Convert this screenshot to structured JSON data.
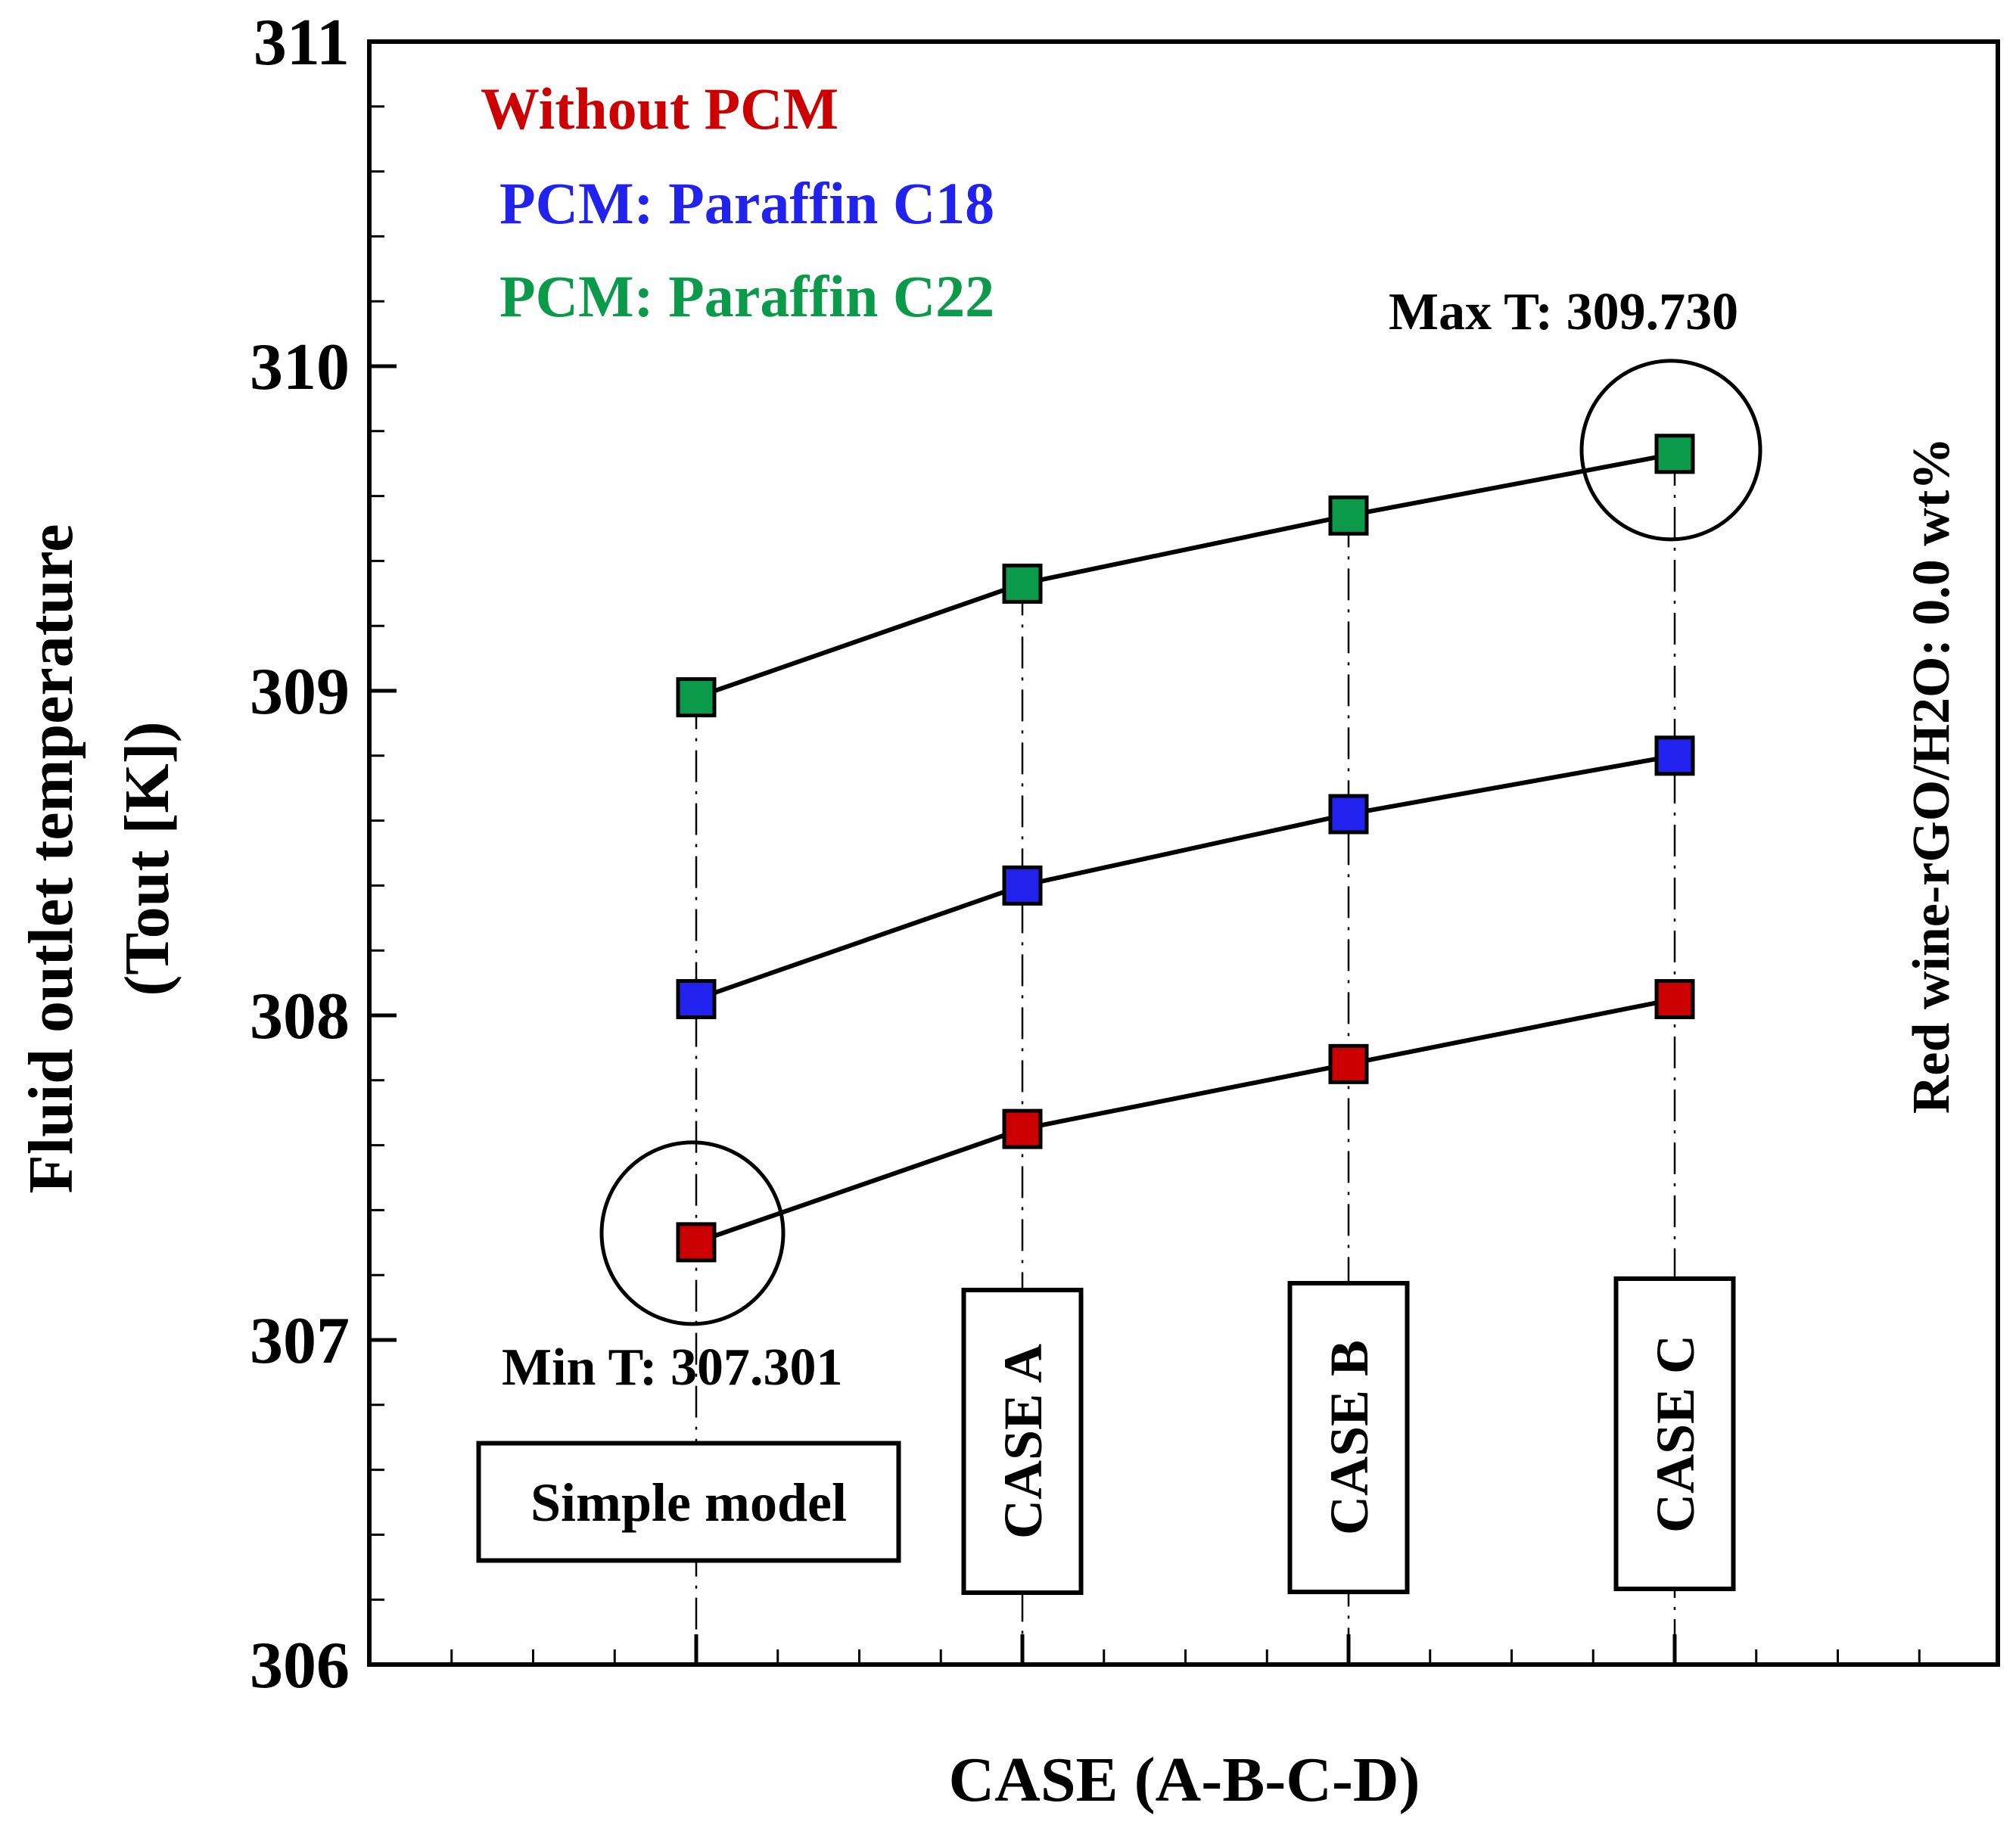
{
  "chart_data": {
    "type": "line",
    "xlabel": "CASE (A-B-C-D)",
    "ylabel_line1": "Fluid outlet temperature",
    "ylabel_line2": "(Tout [K])",
    "ylim": [
      306,
      311
    ],
    "yticks": [
      "306",
      "307",
      "308",
      "309",
      "310",
      "311"
    ],
    "categories": [
      "Simple model",
      "CASE A",
      "CASE B",
      "CASE C"
    ],
    "series": [
      {
        "name": "Without PCM",
        "color": "#cc0000",
        "values": [
          307.301,
          307.65,
          307.85,
          308.05
        ]
      },
      {
        "name": "PCM: Paraffin C18",
        "color": "#2222ee",
        "values": [
          308.05,
          308.4,
          308.62,
          308.8
        ]
      },
      {
        "name": "PCM: Paraffin C22",
        "color": "#0a9a4a",
        "values": [
          308.98,
          309.33,
          309.54,
          309.73
        ]
      }
    ],
    "annotations": {
      "max_label": "Max T: 309.730",
      "min_label": "Min T: 307.301",
      "side_label": "Red wine-rGO/H2O: 0.0 wt%"
    },
    "legend_position": "top-left"
  }
}
